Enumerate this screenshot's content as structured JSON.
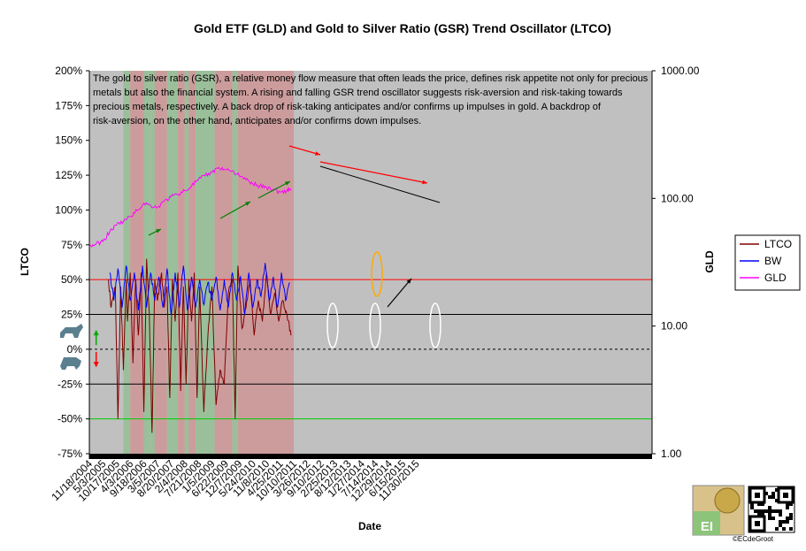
{
  "chart_data": {
    "type": "line",
    "title": "Gold ETF (GLD) and Gold to Silver Ratio (GSR) Trend Oscillator (LTCO)",
    "xlabel": "Date",
    "ylabel_left": "LTCO",
    "ylabel_right": "GLD",
    "left_axis": {
      "range": [
        -75,
        200
      ],
      "ticks": [
        200,
        175,
        150,
        125,
        100,
        75,
        50,
        25,
        0,
        -25,
        -50,
        -75
      ],
      "tick_labels": [
        "200%",
        "175%",
        "150%",
        "125%",
        "100%",
        "75%",
        "50%",
        "25%",
        "0%",
        "-25%",
        "-50%",
        "-75%"
      ]
    },
    "right_axis": {
      "scale": "log",
      "ticks": [
        1000,
        100,
        10,
        1
      ],
      "tick_labels": [
        "1000.00",
        "100.00",
        "10.00",
        "1.00"
      ]
    },
    "x_tick_labels": [
      "11/18/2004",
      "5/3/2005",
      "10/17/2005",
      "4/3/2006",
      "9/18/2006",
      "3/5/2007",
      "8/20/2007",
      "2/4/2008",
      "7/21/2008",
      "1/5/2009",
      "6/22/2009",
      "12/7/2009",
      "5/24/2010",
      "11/8/2010",
      "4/25/2011",
      "10/10/2011",
      "3/26/2012",
      "9/10/2012",
      "2/25/2013",
      "8/12/2013",
      "1/27/2014",
      "7/14/2014",
      "12/29/2014",
      "6/15/2015",
      "11/30/2015"
    ],
    "reference_lines": [
      {
        "value": 50,
        "color": "#ff0000",
        "style": "solid"
      },
      {
        "value": 25,
        "color": "#000000",
        "style": "solid"
      },
      {
        "value": 0,
        "color": "#000000",
        "style": "dashed"
      },
      {
        "value": -25,
        "color": "#000000",
        "style": "solid"
      },
      {
        "value": -50,
        "color": "#00cc00",
        "style": "solid"
      }
    ],
    "regions": [
      {
        "from": 0,
        "to": 2.5,
        "type": "neutral"
      },
      {
        "from": 2.5,
        "to": 3.0,
        "type": "risk-taking"
      },
      {
        "from": 3.0,
        "to": 4.0,
        "type": "risk-aversion"
      },
      {
        "from": 4.0,
        "to": 4.8,
        "type": "risk-taking"
      },
      {
        "from": 4.8,
        "to": 5.7,
        "type": "risk-aversion"
      },
      {
        "from": 5.7,
        "to": 6.5,
        "type": "risk-taking"
      },
      {
        "from": 6.5,
        "to": 7.0,
        "type": "risk-aversion"
      },
      {
        "from": 7.0,
        "to": 7.3,
        "type": "risk-taking"
      },
      {
        "from": 7.3,
        "to": 7.8,
        "type": "risk-aversion"
      },
      {
        "from": 7.8,
        "to": 9.2,
        "type": "risk-taking"
      },
      {
        "from": 9.2,
        "to": 10.5,
        "type": "risk-aversion"
      },
      {
        "from": 10.5,
        "to": 10.9,
        "type": "risk-taking"
      },
      {
        "from": 10.9,
        "to": 15.0,
        "type": "risk-aversion"
      },
      {
        "from": 15.0,
        "to": 24.0,
        "type": "neutral"
      }
    ],
    "series": [
      {
        "name": "LTCO",
        "color": "#800000",
        "axis": "left",
        "x": [
          1.4,
          1.6,
          1.9,
          2.1,
          2.3,
          2.5,
          2.7,
          2.8,
          3.0,
          3.2,
          3.4,
          3.6,
          3.8,
          4.0,
          4.2,
          4.4,
          4.6,
          4.8,
          5.0,
          5.3,
          5.5,
          5.7,
          5.9,
          6.1,
          6.3,
          6.5,
          6.7,
          6.9,
          7.1,
          7.3,
          7.5,
          7.7,
          7.9,
          8.1,
          8.4,
          8.7,
          9.0,
          9.3,
          9.6,
          9.9,
          10.2,
          10.5,
          10.7,
          10.9,
          11.2,
          11.5,
          11.8,
          12.1,
          12.4,
          12.7,
          13.0,
          13.3,
          13.6,
          13.9,
          14.2,
          14.5,
          14.8
        ],
        "values": [
          50,
          30,
          45,
          -50,
          45,
          -15,
          50,
          20,
          55,
          -10,
          50,
          10,
          55,
          -45,
          65,
          25,
          -60,
          50,
          35,
          55,
          30,
          45,
          -35,
          50,
          20,
          55,
          -30,
          45,
          -25,
          50,
          20,
          55,
          -35,
          45,
          -45,
          10,
          45,
          -40,
          -15,
          -25,
          40,
          50,
          -50,
          60,
          15,
          30,
          50,
          10,
          35,
          20,
          55,
          25,
          40,
          20,
          35,
          25,
          10
        ]
      },
      {
        "name": "BW",
        "color": "#0000ff",
        "axis": "left",
        "x": [
          1.5,
          1.8,
          2.1,
          2.4,
          2.7,
          3.0,
          3.3,
          3.6,
          3.9,
          4.2,
          4.5,
          4.8,
          5.1,
          5.4,
          5.7,
          6.0,
          6.3,
          6.6,
          6.9,
          7.2,
          7.5,
          7.8,
          8.1,
          8.4,
          8.7,
          9.0,
          9.3,
          9.6,
          9.9,
          10.2,
          10.5,
          10.8,
          11.1,
          11.4,
          11.7,
          12.0,
          12.3,
          12.6,
          12.9,
          13.2,
          13.5,
          13.8,
          14.1,
          14.4,
          14.7
        ],
        "values": [
          55,
          35,
          58,
          30,
          60,
          35,
          55,
          28,
          60,
          30,
          55,
          35,
          52,
          30,
          58,
          25,
          55,
          30,
          60,
          28,
          52,
          30,
          50,
          32,
          48,
          35,
          52,
          28,
          50,
          30,
          55,
          35,
          52,
          25,
          55,
          30,
          50,
          38,
          62,
          35,
          52,
          30,
          55,
          35,
          48
        ]
      },
      {
        "name": "GLD",
        "color": "#ff00ff",
        "axis": "right",
        "x": [
          0,
          0.5,
          1.0,
          1.5,
          2.0,
          2.5,
          3.0,
          3.5,
          4.0,
          4.5,
          5.0,
          5.5,
          6.0,
          6.5,
          7.0,
          7.5,
          8.0,
          8.5,
          9.0,
          9.5,
          10.0,
          10.5,
          11.0,
          11.5,
          12.0,
          12.5,
          13.0,
          13.5,
          14.0,
          14.5,
          14.8
        ],
        "values": [
          42,
          44,
          46,
          55,
          62,
          66,
          72,
          80,
          92,
          88,
          85,
          95,
          103,
          108,
          115,
          125,
          140,
          150,
          160,
          175,
          168,
          165,
          150,
          140,
          130,
          125,
          122,
          118,
          112,
          115,
          119
        ]
      }
    ],
    "legend": {
      "placement": "right",
      "entries": [
        "LTCO",
        "BW",
        "GLD"
      ]
    },
    "annotation": "The gold to silver ratio (GSR), a relative money flow measure that often leads the price, defines risk appetite not only for precious metals but also the financial system. A rising and falling GSR trend oscillator suggests risk-aversion and risk-taking towards precious metals, respectively. A back drop of risk-taking anticipates and/or confirms up impulses in gold. A backdrop of risk-aversion, on the other hand, anticipates and/or confirms down impulses.",
    "copyright": "©ECdeGroot",
    "logo_text": "EI",
    "colors": {
      "neutral": "#c0c0c0",
      "risk-taking": "#9abf9a",
      "risk-aversion": "#cc9c9c"
    }
  }
}
